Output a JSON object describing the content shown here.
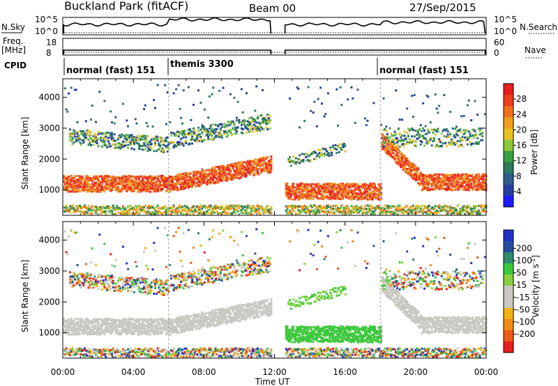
{
  "header": {
    "site": "Buckland Park (fitACF)",
    "beam": "Beam 00",
    "date": "27/Sep/2015"
  },
  "status_panels": {
    "nsky_label": "N.Sky",
    "nsky_ticks": [
      "10^5",
      "10^0"
    ],
    "nsearch_label": "N.Search",
    "nsearch_ticks": [
      "10^5",
      "10^0"
    ],
    "freq_label_1": "Freq.",
    "freq_label_2": "[MHz]",
    "freq_ticks": [
      "18",
      "8"
    ],
    "nave_label": "Nave",
    "nave_ticks": [
      "60",
      "0"
    ],
    "cpid_label": "CPID",
    "modes": [
      {
        "name": "normal (fast) 151",
        "start_h": 0
      },
      {
        "name": "themis 3300",
        "start_h": 6
      },
      {
        "name": "normal (fast) 151",
        "start_h": 18
      }
    ]
  },
  "colors": {
    "power": [
      "#1c1cff",
      "#2440a0",
      "#2e5c8c",
      "#2f7a5c",
      "#3aa046",
      "#8cc83c",
      "#e8c020",
      "#f0a020",
      "#f07020",
      "#ee3c1e",
      "#e81e1e"
    ],
    "velocity": [
      "#e81e1e",
      "#ee5a14",
      "#f08a14",
      "#f2b414",
      "#c8c8c0",
      "#c8c8c0",
      "#88d040",
      "#3cc83c",
      "#2e8c6c",
      "#284c9c",
      "#1e32c8"
    ]
  },
  "chart_data": [
    {
      "type": "heatmap",
      "name": "power",
      "xlabel": "",
      "ylabel": "Slant Range [km]",
      "xlim_h": [
        0,
        24
      ],
      "ylim_km": [
        180,
        4600
      ],
      "yticks": [
        1000,
        2000,
        3000,
        4000
      ],
      "colorbar_label": "Power [dB]",
      "colorbar_ticks": [
        4,
        8,
        12,
        16,
        20,
        24,
        28
      ],
      "data_gap_h": [
        11.8,
        12.6
      ]
    },
    {
      "type": "heatmap",
      "name": "velocity",
      "xlabel": "Time UT",
      "ylabel": "Slant Range [km]",
      "xlim_h": [
        0,
        24
      ],
      "ylim_km": [
        180,
        4600
      ],
      "yticks": [
        1000,
        2000,
        3000,
        4000
      ],
      "xticks": [
        "00:00",
        "04:00",
        "08:00",
        "12:00",
        "16:00",
        "20:00",
        "00:00"
      ],
      "colorbar_label": "Velocity [m s",
      "colorbar_label_sup": "-1",
      "colorbar_label_end": "]",
      "colorbar_ticks": [
        -200,
        -100,
        -50,
        -15,
        15,
        50,
        100,
        200
      ],
      "data_gap_h": [
        11.8,
        12.6
      ]
    }
  ]
}
